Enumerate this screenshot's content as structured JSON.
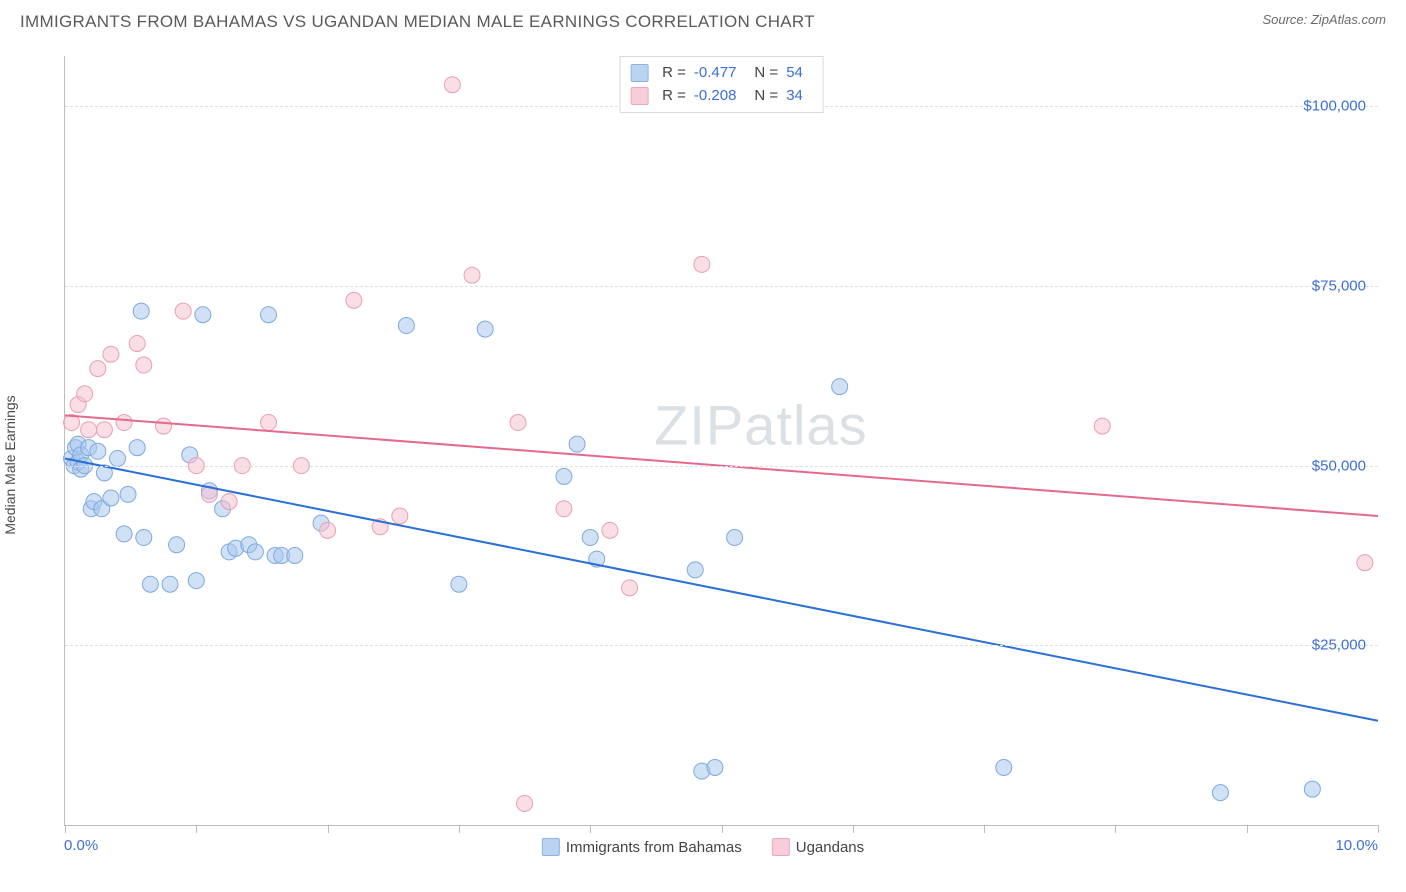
{
  "header": {
    "title": "IMMIGRANTS FROM BAHAMAS VS UGANDAN MEDIAN MALE EARNINGS CORRELATION CHART",
    "source": "Source: ZipAtlas.com"
  },
  "chart": {
    "type": "scatter",
    "y_axis_label": "Median Male Earnings",
    "xlim": [
      0,
      10
    ],
    "ylim": [
      0,
      107000
    ],
    "x_ticks_at": [
      0,
      1,
      2,
      3,
      4,
      5,
      6,
      7,
      8,
      9,
      10
    ],
    "x_tick_labels": {
      "min": "0.0%",
      "max": "10.0%"
    },
    "y_gridlines": [
      25000,
      50000,
      75000,
      100000
    ],
    "y_tick_labels": [
      "$25,000",
      "$50,000",
      "$75,000",
      "$100,000"
    ],
    "axis_color": "#bdbdbd",
    "grid_color": "#e0e0e0",
    "grid_dash": true,
    "background_color": "#ffffff",
    "tick_label_color": "#3b6fd6",
    "axis_label_color": "#4a4a4a",
    "tick_fontsize": 15,
    "marker_radius": 8,
    "marker_opacity": 0.55,
    "trend_line_width": 2,
    "watermark": {
      "text_a": "ZIP",
      "text_b": "atlas",
      "color": "#9aa9b5",
      "opacity": 0.35,
      "fontsize": 56
    },
    "series": [
      {
        "name": "Immigrants from Bahamas",
        "fill": "#a9c8ef",
        "stroke": "#7ea9db",
        "line_color": "#2a6fd6",
        "legend_swatch_fill": "#b9d3f0",
        "legend_swatch_border": "#8bb4e4",
        "stats": {
          "R": "-0.477",
          "N": "54"
        },
        "points": [
          [
            0.05,
            51000
          ],
          [
            0.07,
            50000
          ],
          [
            0.08,
            52500
          ],
          [
            0.1,
            53000
          ],
          [
            0.1,
            50500
          ],
          [
            0.12,
            49500
          ],
          [
            0.12,
            51500
          ],
          [
            0.15,
            50000
          ],
          [
            0.18,
            52500
          ],
          [
            0.2,
            44000
          ],
          [
            0.22,
            45000
          ],
          [
            0.25,
            52000
          ],
          [
            0.28,
            44000
          ],
          [
            0.3,
            49000
          ],
          [
            0.35,
            45500
          ],
          [
            0.4,
            51000
          ],
          [
            0.45,
            40500
          ],
          [
            0.48,
            46000
          ],
          [
            0.55,
            52500
          ],
          [
            0.58,
            71500
          ],
          [
            0.6,
            40000
          ],
          [
            0.65,
            33500
          ],
          [
            0.8,
            33500
          ],
          [
            0.85,
            39000
          ],
          [
            0.95,
            51500
          ],
          [
            1.0,
            34000
          ],
          [
            1.05,
            71000
          ],
          [
            1.1,
            46500
          ],
          [
            1.2,
            44000
          ],
          [
            1.25,
            38000
          ],
          [
            1.3,
            38500
          ],
          [
            1.4,
            39000
          ],
          [
            1.45,
            38000
          ],
          [
            1.55,
            71000
          ],
          [
            1.6,
            37500
          ],
          [
            1.65,
            37500
          ],
          [
            1.75,
            37500
          ],
          [
            1.95,
            42000
          ],
          [
            2.6,
            69500
          ],
          [
            3.0,
            33500
          ],
          [
            3.2,
            69000
          ],
          [
            3.8,
            48500
          ],
          [
            3.9,
            53000
          ],
          [
            4.0,
            40000
          ],
          [
            4.05,
            37000
          ],
          [
            4.8,
            35500
          ],
          [
            4.85,
            7500
          ],
          [
            4.95,
            8000
          ],
          [
            5.1,
            40000
          ],
          [
            5.9,
            61000
          ],
          [
            7.15,
            8000
          ],
          [
            8.8,
            4500
          ],
          [
            9.5,
            5000
          ]
        ],
        "trend": {
          "x1": 0,
          "y1": 51000,
          "x2": 10,
          "y2": 14500
        }
      },
      {
        "name": "Ugandans",
        "fill": "#f4c3cf",
        "stroke": "#e99fb4",
        "line_color": "#e46a8d",
        "legend_swatch_fill": "#f6cdd8",
        "legend_swatch_border": "#eda8bc",
        "stats": {
          "R": "-0.208",
          "N": "34"
        },
        "points": [
          [
            0.05,
            56000
          ],
          [
            0.1,
            58500
          ],
          [
            0.15,
            60000
          ],
          [
            0.18,
            55000
          ],
          [
            0.25,
            63500
          ],
          [
            0.3,
            55000
          ],
          [
            0.35,
            65500
          ],
          [
            0.45,
            56000
          ],
          [
            0.55,
            67000
          ],
          [
            0.6,
            64000
          ],
          [
            0.75,
            55500
          ],
          [
            0.9,
            71500
          ],
          [
            1.0,
            50000
          ],
          [
            1.1,
            46000
          ],
          [
            1.25,
            45000
          ],
          [
            1.35,
            50000
          ],
          [
            1.55,
            56000
          ],
          [
            1.8,
            50000
          ],
          [
            2.0,
            41000
          ],
          [
            2.2,
            73000
          ],
          [
            2.4,
            41500
          ],
          [
            2.55,
            43000
          ],
          [
            2.95,
            103000
          ],
          [
            3.1,
            76500
          ],
          [
            3.45,
            56000
          ],
          [
            3.5,
            3000
          ],
          [
            3.8,
            44000
          ],
          [
            4.15,
            41000
          ],
          [
            4.3,
            33000
          ],
          [
            4.85,
            78000
          ],
          [
            7.9,
            55500
          ],
          [
            9.9,
            36500
          ]
        ],
        "trend": {
          "x1": 0,
          "y1": 57000,
          "x2": 10,
          "y2": 43000
        }
      }
    ]
  },
  "top_legend": {
    "rows": [
      {
        "r_label": "R =",
        "r_val": "-0.477",
        "n_label": "N =",
        "n_val": "54",
        "swatch_series": 0
      },
      {
        "r_label": "R =",
        "r_val": "-0.208",
        "n_label": "N =",
        "n_val": "34",
        "swatch_series": 1
      }
    ]
  }
}
